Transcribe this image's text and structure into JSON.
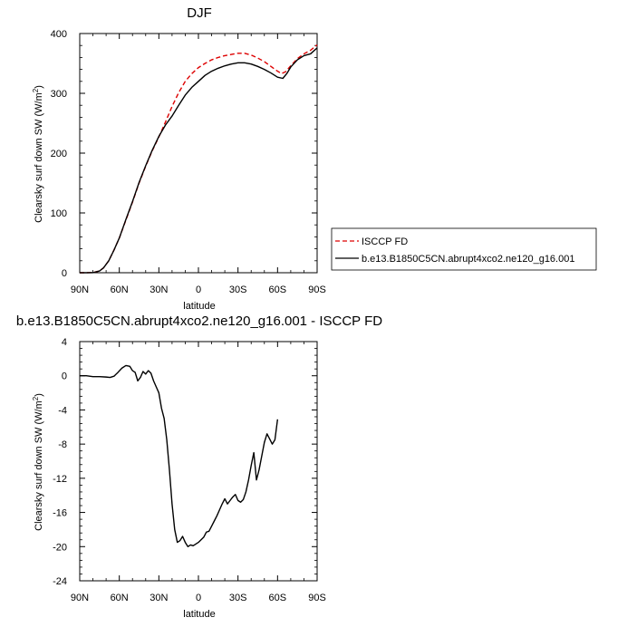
{
  "chart_data": [
    {
      "type": "line",
      "title": "DJF",
      "xlabel": "latitude",
      "ylabel": "Clearsky surf down SW (W/m",
      "ylabel_sup": "2",
      "ylabel_close": ")",
      "xlim": [
        90,
        -90
      ],
      "ylim": [
        0,
        400
      ],
      "x_tick_values": [
        90,
        60,
        30,
        0,
        -30,
        -60,
        -90
      ],
      "x_tick_labels": [
        "90N",
        "60N",
        "30N",
        "0",
        "30S",
        "60S",
        "90S"
      ],
      "y_tick_values": [
        0,
        100,
        200,
        300,
        400
      ],
      "y_tick_labels": [
        "0",
        "100",
        "200",
        "300",
        "400"
      ],
      "series": [
        {
          "name": "ISCCP FD",
          "color": "#dd0000",
          "dash": "dashed",
          "points": [
            [
              90,
              0
            ],
            [
              85,
              0
            ],
            [
              80,
              0.3
            ],
            [
              75,
              3
            ],
            [
              72,
              8
            ],
            [
              68,
              20
            ],
            [
              64,
              38
            ],
            [
              60,
              58
            ],
            [
              55,
              88
            ],
            [
              50,
              118
            ],
            [
              45,
              150
            ],
            [
              40,
              178
            ],
            [
              35,
              204
            ],
            [
              30,
              227
            ],
            [
              25,
              252
            ],
            [
              20,
              278
            ],
            [
              15,
              301
            ],
            [
              10,
              320
            ],
            [
              5,
              333
            ],
            [
              0,
              343
            ],
            [
              -5,
              350
            ],
            [
              -10,
              356
            ],
            [
              -15,
              360
            ],
            [
              -20,
              363
            ],
            [
              -25,
              365
            ],
            [
              -30,
              367
            ],
            [
              -35,
              367
            ],
            [
              -40,
              364
            ],
            [
              -45,
              359
            ],
            [
              -50,
              353
            ],
            [
              -55,
              345
            ],
            [
              -60,
              337
            ],
            [
              -63,
              333
            ],
            [
              -66,
              336
            ],
            [
              -70,
              346
            ],
            [
              -75,
              358
            ],
            [
              -80,
              366
            ],
            [
              -85,
              372
            ],
            [
              -90,
              381
            ]
          ]
        },
        {
          "name": "b.e13.B1850C5CN.abrupt4xco2.ne120_g16.001",
          "color": "#000000",
          "dash": "solid",
          "points": [
            [
              90,
              0
            ],
            [
              85,
              0
            ],
            [
              80,
              0.2
            ],
            [
              75,
              3
            ],
            [
              72,
              8
            ],
            [
              68,
              20
            ],
            [
              64,
              38
            ],
            [
              60,
              58
            ],
            [
              55,
              89
            ],
            [
              50,
              119
            ],
            [
              45,
              151
            ],
            [
              40,
              179
            ],
            [
              35,
              205
            ],
            [
              30,
              228
            ],
            [
              25,
              247
            ],
            [
              20,
              262
            ],
            [
              15,
              280
            ],
            [
              10,
              297
            ],
            [
              5,
              310
            ],
            [
              0,
              320
            ],
            [
              -5,
              330
            ],
            [
              -10,
              337
            ],
            [
              -15,
              342
            ],
            [
              -20,
              346
            ],
            [
              -25,
              349
            ],
            [
              -30,
              351
            ],
            [
              -35,
              351
            ],
            [
              -40,
              349
            ],
            [
              -45,
              345
            ],
            [
              -50,
              340
            ],
            [
              -55,
              334
            ],
            [
              -60,
              327
            ],
            [
              -64,
              325
            ],
            [
              -67,
              333
            ],
            [
              -70,
              344
            ],
            [
              -75,
              356
            ],
            [
              -80,
              363
            ],
            [
              -85,
              366
            ],
            [
              -90,
              376
            ]
          ]
        }
      ]
    },
    {
      "type": "line",
      "title": "b.e13.B1850C5CN.abrupt4xco2.ne120_g16.001 - ISCCP FD",
      "xlabel": "latitude",
      "ylabel": "Clearsky surf down SW (W/m",
      "ylabel_sup": "2",
      "ylabel_close": ")",
      "xlim": [
        90,
        -90
      ],
      "ylim": [
        -24,
        4
      ],
      "x_tick_values": [
        90,
        60,
        30,
        0,
        -30,
        -60,
        -90
      ],
      "x_tick_labels": [
        "90N",
        "60N",
        "30N",
        "0",
        "30S",
        "60S",
        "90S"
      ],
      "y_tick_values": [
        -24,
        -20,
        -16,
        -12,
        -8,
        -4,
        0,
        4
      ],
      "y_tick_labels": [
        "-24",
        "-20",
        "-16",
        "-12",
        "-8",
        "-4",
        "0",
        "4"
      ],
      "series": [
        {
          "color": "#000000",
          "dash": "solid",
          "points": [
            [
              90,
              0
            ],
            [
              85,
              0
            ],
            [
              80,
              -0.1
            ],
            [
              75,
              -0.1
            ],
            [
              70,
              -0.15
            ],
            [
              67,
              -0.2
            ],
            [
              64,
              -0.05
            ],
            [
              61,
              0.4
            ],
            [
              58,
              0.9
            ],
            [
              55,
              1.2
            ],
            [
              52,
              1.1
            ],
            [
              50,
              0.6
            ],
            [
              48,
              0.4
            ],
            [
              46,
              -0.6
            ],
            [
              44,
              -0.2
            ],
            [
              42,
              0.5
            ],
            [
              40,
              0.2
            ],
            [
              38,
              0.6
            ],
            [
              36,
              0.3
            ],
            [
              34,
              -0.6
            ],
            [
              32,
              -1.3
            ],
            [
              30,
              -2.0
            ],
            [
              28,
              -3.8
            ],
            [
              26,
              -5.0
            ],
            [
              24,
              -7.5
            ],
            [
              22,
              -11.0
            ],
            [
              20,
              -15.0
            ],
            [
              18,
              -18.0
            ],
            [
              16,
              -19.5
            ],
            [
              14,
              -19.3
            ],
            [
              12,
              -18.8
            ],
            [
              10,
              -19.5
            ],
            [
              8,
              -20.0
            ],
            [
              6,
              -19.8
            ],
            [
              4,
              -19.9
            ],
            [
              2,
              -19.7
            ],
            [
              0,
              -19.5
            ],
            [
              -2,
              -19.2
            ],
            [
              -4,
              -18.9
            ],
            [
              -6,
              -18.3
            ],
            [
              -8,
              -18.2
            ],
            [
              -10,
              -17.6
            ],
            [
              -12,
              -17.0
            ],
            [
              -14,
              -16.4
            ],
            [
              -16,
              -15.7
            ],
            [
              -18,
              -15.0
            ],
            [
              -20,
              -14.4
            ],
            [
              -22,
              -15.0
            ],
            [
              -24,
              -14.6
            ],
            [
              -26,
              -14.2
            ],
            [
              -28,
              -13.9
            ],
            [
              -30,
              -14.6
            ],
            [
              -32,
              -14.8
            ],
            [
              -34,
              -14.5
            ],
            [
              -36,
              -13.6
            ],
            [
              -38,
              -12.2
            ],
            [
              -40,
              -10.5
            ],
            [
              -42,
              -9.0
            ],
            [
              -44,
              -12.2
            ],
            [
              -46,
              -11.0
            ],
            [
              -48,
              -9.4
            ],
            [
              -50,
              -7.8
            ],
            [
              -52,
              -6.8
            ],
            [
              -54,
              -7.4
            ],
            [
              -56,
              -8.0
            ],
            [
              -58,
              -7.5
            ],
            [
              -60,
              -5.1
            ]
          ]
        }
      ]
    }
  ],
  "legend": {
    "items": [
      {
        "label": "ISCCP FD",
        "color": "#dd0000",
        "dash": "dashed"
      },
      {
        "label": "b.e13.B1850C5CN.abrupt4xco2.ne120_g16.001",
        "color": "#000000",
        "dash": "solid"
      }
    ]
  }
}
